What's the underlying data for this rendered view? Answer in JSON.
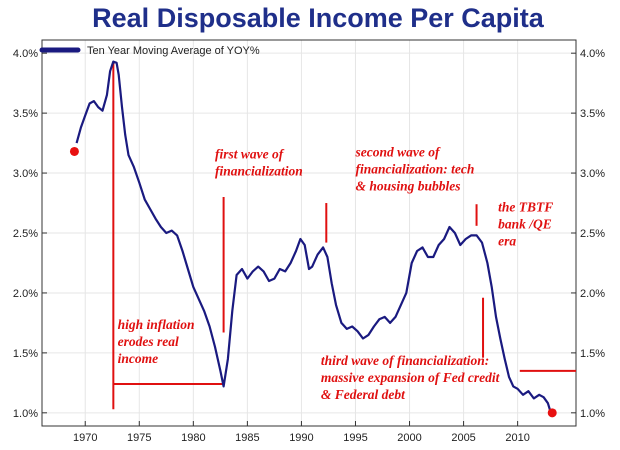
{
  "chart_data": {
    "type": "line",
    "title": "Real Disposable Income Per Capita",
    "xlabel": "",
    "ylabel": "",
    "xlim": [
      1966,
      2015.4
    ],
    "ylim": [
      0.89,
      4.11
    ],
    "x_ticks": [
      1970,
      1975,
      1980,
      1985,
      1990,
      1995,
      2000,
      2005,
      2010
    ],
    "y_ticks": [
      1.0,
      1.5,
      2.0,
      2.5,
      3.0,
      3.5,
      4.0
    ],
    "y_tick_labels": [
      "1.0%",
      "1.5%",
      "2.0%",
      "2.5%",
      "3.0%",
      "3.5%",
      "4.0%"
    ],
    "grid": true,
    "legend_position": "top-left",
    "series": [
      {
        "name": "Ten Year Moving Average of YOY%",
        "color": "#1a1a80",
        "x": [
          1969.2,
          1969.6,
          1970.0,
          1970.4,
          1970.8,
          1971.2,
          1971.6,
          1972.0,
          1972.3,
          1972.6,
          1972.9,
          1973.1,
          1973.4,
          1973.7,
          1974.0,
          1974.5,
          1975.0,
          1975.5,
          1976.0,
          1976.5,
          1977.0,
          1977.5,
          1978.0,
          1978.5,
          1979.0,
          1979.5,
          1980.0,
          1980.5,
          1981.0,
          1981.5,
          1982.0,
          1982.5,
          1982.8,
          1983.2,
          1983.6,
          1984.0,
          1984.5,
          1985.0,
          1985.5,
          1986.0,
          1986.5,
          1987.0,
          1987.5,
          1988.0,
          1988.5,
          1989.0,
          1989.5,
          1989.9,
          1990.3,
          1990.7,
          1991.0,
          1991.5,
          1992.0,
          1992.4,
          1992.8,
          1993.2,
          1993.7,
          1994.2,
          1994.7,
          1995.2,
          1995.7,
          1996.2,
          1996.7,
          1997.2,
          1997.7,
          1998.2,
          1998.7,
          1999.2,
          1999.7,
          2000.2,
          2000.7,
          2001.2,
          2001.7,
          2002.2,
          2002.7,
          2003.2,
          2003.7,
          2004.2,
          2004.7,
          2005.2,
          2005.7,
          2006.2,
          2006.7,
          2007.2,
          2007.6,
          2008.0,
          2008.4,
          2008.8,
          2009.2,
          2009.6,
          2010.0,
          2010.5,
          2011.0,
          2011.5,
          2012.0,
          2012.4,
          2012.8,
          2013.0
        ],
        "y": [
          3.25,
          3.38,
          3.48,
          3.58,
          3.6,
          3.55,
          3.52,
          3.65,
          3.85,
          3.93,
          3.92,
          3.82,
          3.55,
          3.32,
          3.15,
          3.05,
          2.92,
          2.78,
          2.7,
          2.62,
          2.55,
          2.5,
          2.52,
          2.48,
          2.35,
          2.2,
          2.05,
          1.95,
          1.85,
          1.72,
          1.55,
          1.35,
          1.22,
          1.45,
          1.85,
          2.15,
          2.2,
          2.12,
          2.18,
          2.22,
          2.18,
          2.1,
          2.12,
          2.2,
          2.18,
          2.25,
          2.35,
          2.45,
          2.4,
          2.2,
          2.22,
          2.32,
          2.38,
          2.3,
          2.08,
          1.9,
          1.75,
          1.7,
          1.72,
          1.68,
          1.62,
          1.65,
          1.72,
          1.78,
          1.8,
          1.75,
          1.8,
          1.9,
          2.0,
          2.25,
          2.35,
          2.38,
          2.3,
          2.3,
          2.4,
          2.45,
          2.55,
          2.5,
          2.4,
          2.45,
          2.48,
          2.48,
          2.42,
          2.25,
          2.05,
          1.8,
          1.62,
          1.45,
          1.3,
          1.22,
          1.2,
          1.15,
          1.18,
          1.12,
          1.15,
          1.13,
          1.08,
          1.02
        ]
      }
    ],
    "markers": [
      {
        "x": 1969.0,
        "y": 3.18,
        "color": "#e81010"
      },
      {
        "x": 2013.2,
        "y": 1.0,
        "color": "#e81010"
      }
    ],
    "annotation_lines": [
      {
        "orient": "v",
        "x": 1972.6,
        "y1": 1.03,
        "y2": 3.92
      },
      {
        "orient": "h",
        "y": 1.24,
        "x1": 1972.6,
        "x2": 1982.9
      },
      {
        "orient": "v",
        "x": 1982.8,
        "y1": 1.67,
        "y2": 2.8
      },
      {
        "orient": "v",
        "x": 1992.3,
        "y1": 2.42,
        "y2": 2.75
      },
      {
        "orient": "v",
        "x": 2006.2,
        "y1": 2.56,
        "y2": 2.74
      },
      {
        "orient": "v",
        "x": 2006.8,
        "y1": 1.46,
        "y2": 1.96
      },
      {
        "orient": "h",
        "y": 1.35,
        "x1": 2010.2,
        "x2": 2015.4
      }
    ],
    "annotations": [
      {
        "x": 1973.0,
        "y": 1.7,
        "lines": [
          "high inflation",
          "erodes real",
          "income"
        ]
      },
      {
        "x": 1982.0,
        "y": 3.12,
        "lines": [
          "first wave of",
          "financialization"
        ]
      },
      {
        "x": 1995.0,
        "y": 3.14,
        "lines": [
          "second wave of",
          "financialization: tech",
          "& housing bubbles"
        ]
      },
      {
        "x": 2008.2,
        "y": 2.68,
        "lines": [
          "the TBTF",
          "bank /QE",
          "era"
        ]
      },
      {
        "x": 1991.8,
        "y": 1.4,
        "lines": [
          "third wave of financialization:",
          "massive expansion of Fed credit",
          "& Federal debt"
        ]
      }
    ]
  }
}
